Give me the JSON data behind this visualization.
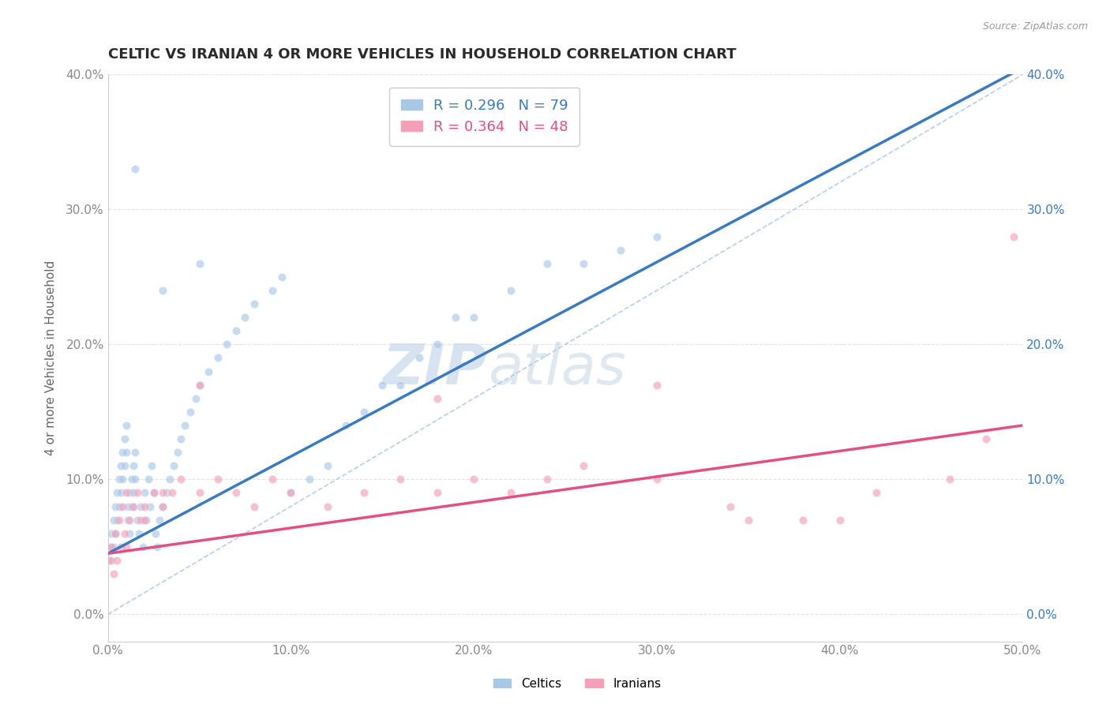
{
  "title": "CELTIC VS IRANIAN 4 OR MORE VEHICLES IN HOUSEHOLD CORRELATION CHART",
  "source": "Source: ZipAtlas.com",
  "ylabel_label": "4 or more Vehicles in Household",
  "xmin": 0.0,
  "xmax": 0.5,
  "ymin": -0.02,
  "ymax": 0.4,
  "xticks": [
    0.0,
    0.1,
    0.2,
    0.3,
    0.4,
    0.5
  ],
  "yticks": [
    0.0,
    0.1,
    0.2,
    0.3,
    0.4
  ],
  "xtick_labels": [
    "0.0%",
    "10.0%",
    "20.0%",
    "30.0%",
    "40.0%",
    "50.0%"
  ],
  "ytick_labels": [
    "0.0%",
    "10.0%",
    "20.0%",
    "30.0%",
    "40.0%"
  ],
  "celtic_R": 0.296,
  "celtic_N": 79,
  "iranian_R": 0.364,
  "iranian_N": 48,
  "celtic_color": "#a8c8e8",
  "iranian_color": "#f4a0b8",
  "celtic_line_color": "#3a7abf",
  "iranian_line_color": "#e05080",
  "ref_line_color": "#b0c8e8",
  "watermark_zip": "ZIP",
  "watermark_atlas": "atlas",
  "background_color": "#ffffff",
  "title_color": "#2a2a2a",
  "title_fontsize": 13,
  "legend_fontsize": 13,
  "axis_label_fontsize": 11,
  "tick_label_fontsize": 11,
  "scatter_alpha": 0.65,
  "scatter_size": 55,
  "celtic_line_intercept": 0.045,
  "celtic_line_slope": 0.72,
  "iranian_line_intercept": 0.045,
  "iranian_line_slope": 0.19,
  "celtics_x": [
    0.001,
    0.002,
    0.002,
    0.003,
    0.003,
    0.004,
    0.004,
    0.005,
    0.005,
    0.006,
    0.006,
    0.007,
    0.007,
    0.008,
    0.008,
    0.009,
    0.009,
    0.01,
    0.01,
    0.011,
    0.011,
    0.012,
    0.012,
    0.013,
    0.013,
    0.014,
    0.014,
    0.015,
    0.015,
    0.016,
    0.017,
    0.018,
    0.019,
    0.02,
    0.021,
    0.022,
    0.023,
    0.024,
    0.025,
    0.026,
    0.027,
    0.028,
    0.03,
    0.032,
    0.034,
    0.036,
    0.038,
    0.04,
    0.042,
    0.045,
    0.048,
    0.05,
    0.055,
    0.06,
    0.065,
    0.07,
    0.075,
    0.08,
    0.09,
    0.095,
    0.1,
    0.11,
    0.12,
    0.13,
    0.14,
    0.15,
    0.16,
    0.17,
    0.18,
    0.19,
    0.2,
    0.22,
    0.24,
    0.26,
    0.28,
    0.3,
    0.05,
    0.03,
    0.015
  ],
  "celtics_y": [
    0.05,
    0.06,
    0.04,
    0.07,
    0.05,
    0.08,
    0.06,
    0.09,
    0.07,
    0.1,
    0.08,
    0.11,
    0.09,
    0.12,
    0.1,
    0.13,
    0.11,
    0.14,
    0.12,
    0.08,
    0.07,
    0.09,
    0.06,
    0.1,
    0.08,
    0.11,
    0.09,
    0.12,
    0.1,
    0.07,
    0.06,
    0.08,
    0.05,
    0.09,
    0.07,
    0.1,
    0.08,
    0.11,
    0.09,
    0.06,
    0.05,
    0.07,
    0.08,
    0.09,
    0.1,
    0.11,
    0.12,
    0.13,
    0.14,
    0.15,
    0.16,
    0.17,
    0.18,
    0.19,
    0.2,
    0.21,
    0.22,
    0.23,
    0.24,
    0.25,
    0.09,
    0.1,
    0.11,
    0.14,
    0.15,
    0.17,
    0.17,
    0.19,
    0.2,
    0.22,
    0.22,
    0.24,
    0.26,
    0.26,
    0.27,
    0.28,
    0.26,
    0.24,
    0.33
  ],
  "iranians_x": [
    0.001,
    0.002,
    0.003,
    0.004,
    0.005,
    0.006,
    0.007,
    0.008,
    0.009,
    0.01,
    0.012,
    0.014,
    0.016,
    0.018,
    0.02,
    0.025,
    0.03,
    0.035,
    0.04,
    0.05,
    0.06,
    0.07,
    0.08,
    0.09,
    0.1,
    0.12,
    0.14,
    0.16,
    0.18,
    0.2,
    0.22,
    0.24,
    0.26,
    0.3,
    0.34,
    0.38,
    0.42,
    0.46,
    0.48,
    0.495,
    0.35,
    0.4,
    0.3,
    0.18,
    0.05,
    0.03,
    0.02,
    0.01
  ],
  "iranians_y": [
    0.04,
    0.05,
    0.03,
    0.06,
    0.04,
    0.07,
    0.05,
    0.08,
    0.06,
    0.09,
    0.07,
    0.08,
    0.09,
    0.07,
    0.08,
    0.09,
    0.08,
    0.09,
    0.1,
    0.09,
    0.1,
    0.09,
    0.08,
    0.1,
    0.09,
    0.08,
    0.09,
    0.1,
    0.09,
    0.1,
    0.09,
    0.1,
    0.11,
    0.1,
    0.08,
    0.07,
    0.09,
    0.1,
    0.13,
    0.28,
    0.07,
    0.07,
    0.17,
    0.16,
    0.17,
    0.09,
    0.07,
    0.05
  ]
}
